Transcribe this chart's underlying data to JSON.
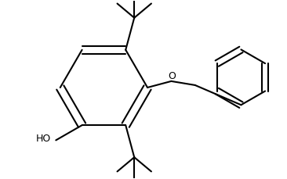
{
  "background_color": "#ffffff",
  "line_color": "#000000",
  "line_width": 1.5,
  "figsize": [
    3.66,
    2.29
  ],
  "dpi": 100
}
